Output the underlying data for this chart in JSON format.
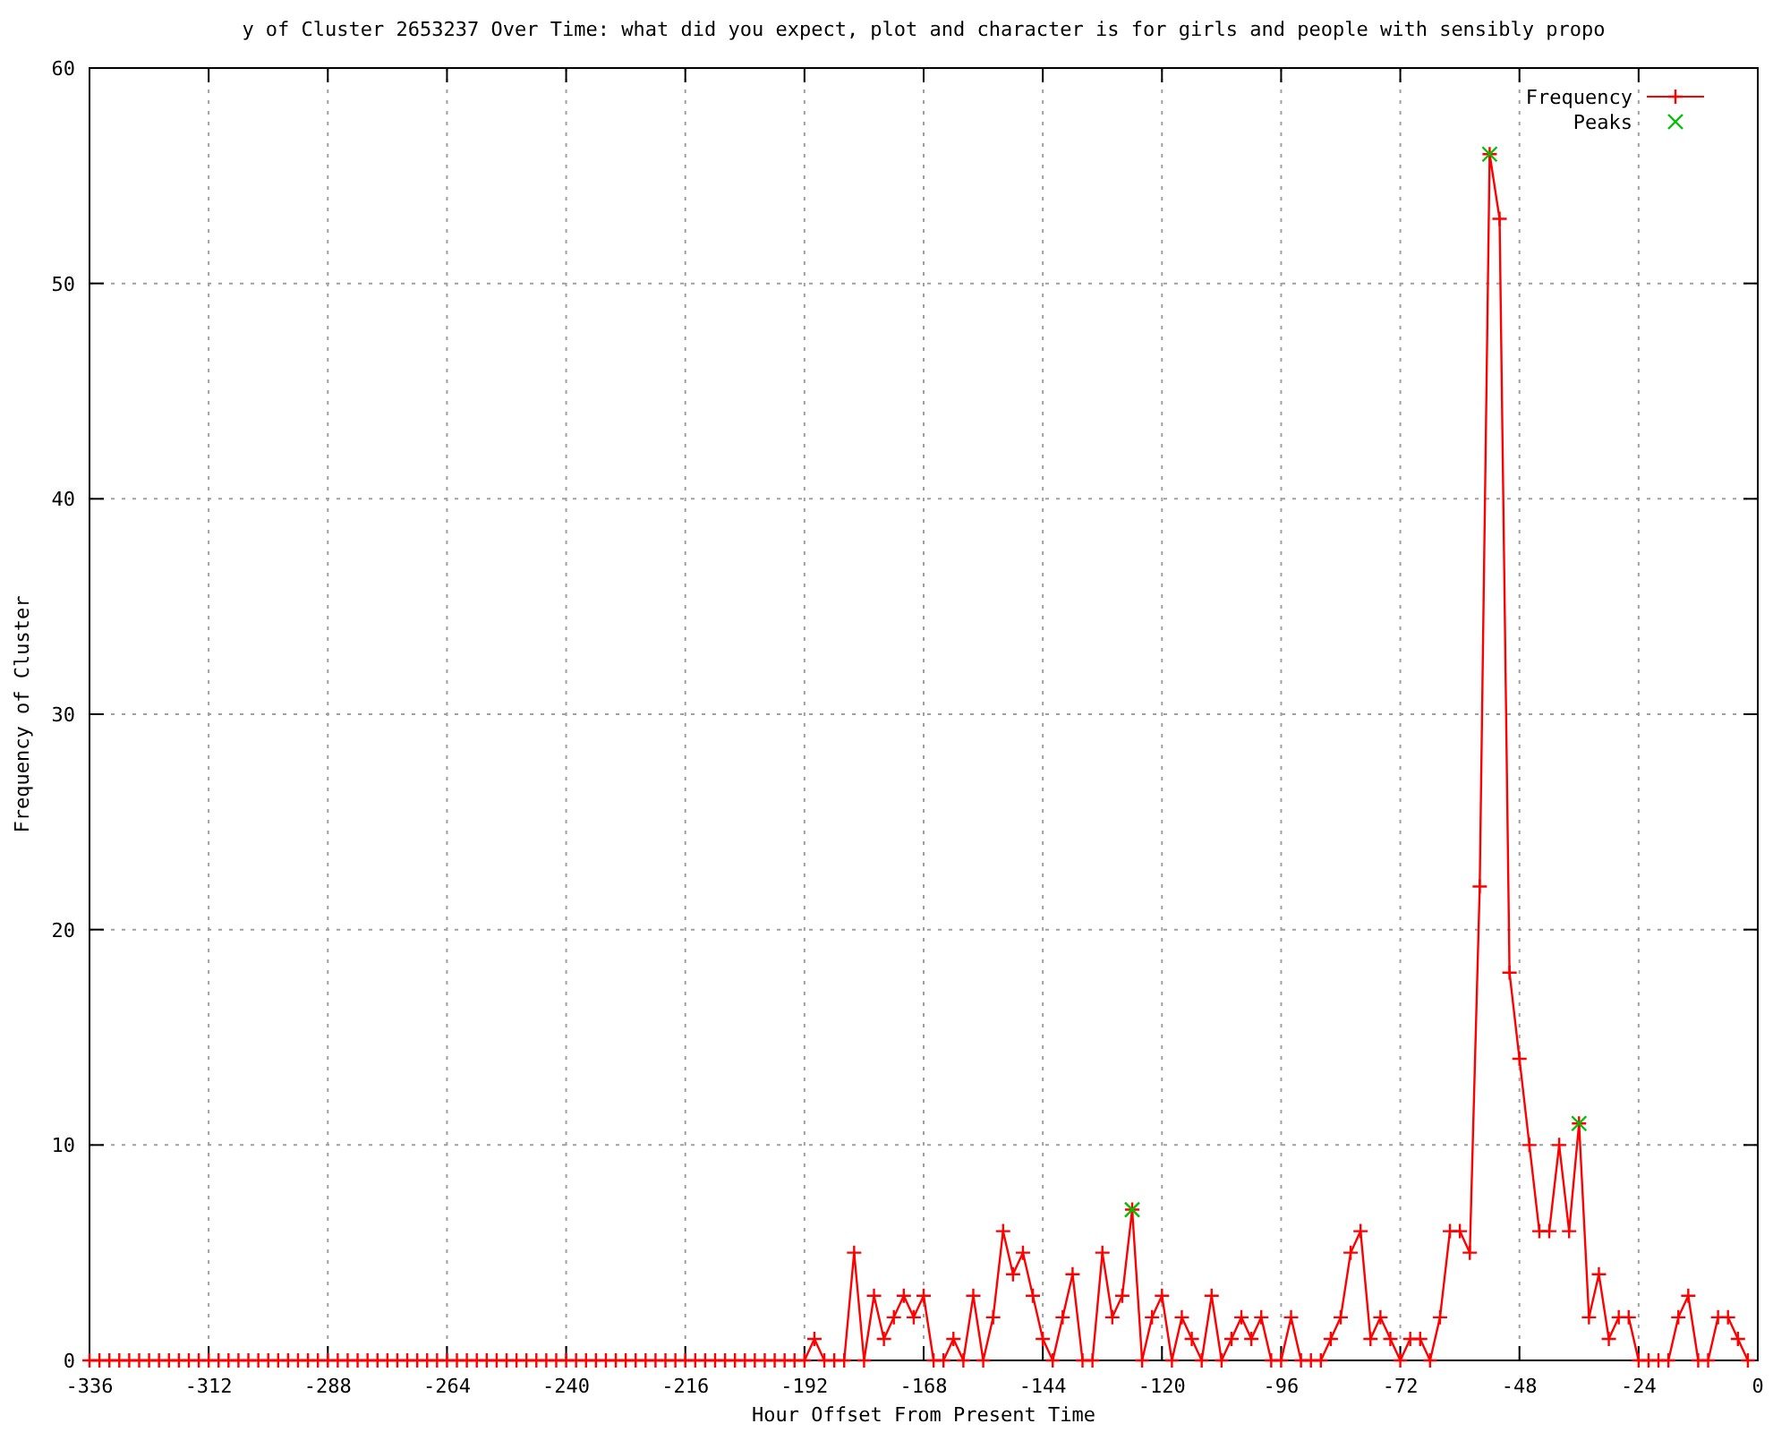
{
  "chart_data": {
    "type": "line",
    "title": "y of Cluster 2653237 Over Time: what did you expect, plot and character is for girls and people with sensibly propo",
    "xlabel": "Hour Offset From Present Time",
    "ylabel": "Frequency of Cluster",
    "xlim": [
      -336,
      0
    ],
    "xticks": [
      -336,
      -312,
      -288,
      -264,
      -240,
      -216,
      -192,
      -168,
      -144,
      -120,
      -96,
      -72,
      -48,
      -24,
      0
    ],
    "ylim": [
      0,
      60
    ],
    "yticks": [
      0,
      10,
      20,
      30,
      40,
      50,
      60
    ],
    "grid": true,
    "legend": "top right",
    "series": [
      {
        "name": "Frequency",
        "marker": "cross",
        "color": "#ff0000",
        "x": [
          -336,
          -334,
          -332,
          -330,
          -328,
          -326,
          -324,
          -322,
          -320,
          -318,
          -316,
          -314,
          -312,
          -310,
          -308,
          -306,
          -304,
          -302,
          -300,
          -298,
          -296,
          -294,
          -292,
          -290,
          -288,
          -286,
          -284,
          -282,
          -280,
          -278,
          -276,
          -274,
          -272,
          -270,
          -268,
          -266,
          -264,
          -262,
          -260,
          -258,
          -256,
          -254,
          -252,
          -250,
          -248,
          -246,
          -244,
          -242,
          -240,
          -238,
          -236,
          -234,
          -232,
          -230,
          -228,
          -226,
          -224,
          -222,
          -220,
          -218,
          -216,
          -214,
          -212,
          -210,
          -208,
          -206,
          -204,
          -202,
          -200,
          -198,
          -196,
          -194,
          -192,
          -190,
          -188,
          -186,
          -184,
          -182,
          -180,
          -178,
          -176,
          -174,
          -172,
          -170,
          -168,
          -166,
          -164,
          -162,
          -160,
          -158,
          -156,
          -154,
          -152,
          -150,
          -148,
          -146,
          -144,
          -142,
          -140,
          -138,
          -136,
          -134,
          -132,
          -130,
          -128,
          -126,
          -124,
          -122,
          -120,
          -118,
          -116,
          -114,
          -112,
          -110,
          -108,
          -106,
          -104,
          -102,
          -100,
          -98,
          -96,
          -94,
          -92,
          -90,
          -88,
          -86,
          -84,
          -82,
          -80,
          -78,
          -76,
          -74,
          -72,
          -70,
          -68,
          -66,
          -64,
          -62,
          -60,
          -58,
          -56,
          -54,
          -52,
          -50,
          -48,
          -46,
          -44,
          -42,
          -40,
          -38,
          -36,
          -34,
          -32,
          -30,
          -28,
          -26,
          -24,
          -22,
          -20,
          -18,
          -16,
          -14,
          -12,
          -10,
          -8,
          -6,
          -4,
          -2
        ],
        "values": [
          0,
          0,
          0,
          0,
          0,
          0,
          0,
          0,
          0,
          0,
          0,
          0,
          0,
          0,
          0,
          0,
          0,
          0,
          0,
          0,
          0,
          0,
          0,
          0,
          0,
          0,
          0,
          0,
          0,
          0,
          0,
          0,
          0,
          0,
          0,
          0,
          0,
          0,
          0,
          0,
          0,
          0,
          0,
          0,
          0,
          0,
          0,
          0,
          0,
          0,
          0,
          0,
          0,
          0,
          0,
          0,
          0,
          0,
          0,
          0,
          0,
          0,
          0,
          0,
          0,
          0,
          0,
          0,
          0,
          0,
          0,
          0,
          0,
          1,
          0,
          0,
          0,
          5,
          0,
          3,
          1,
          2,
          3,
          2,
          3,
          0,
          0,
          1,
          0,
          3,
          0,
          2,
          6,
          4,
          5,
          3,
          1,
          0,
          2,
          4,
          0,
          0,
          5,
          2,
          3,
          7,
          0,
          2,
          3,
          0,
          2,
          1,
          0,
          3,
          0,
          1,
          2,
          1,
          2,
          0,
          0,
          2,
          0,
          0,
          0,
          1,
          2,
          5,
          6,
          1,
          2,
          1,
          0,
          1,
          1,
          0,
          2,
          6,
          6,
          5,
          22,
          56,
          53,
          18,
          14,
          10,
          6,
          6,
          10,
          6,
          11,
          2,
          4,
          1,
          2,
          2,
          0,
          0,
          0,
          0,
          2,
          3,
          0,
          0,
          2,
          2,
          1,
          0
        ]
      },
      {
        "name": "Peaks",
        "type": "scatter",
        "marker": "cross",
        "color": "#00c000",
        "x": [
          -126,
          -54,
          -36
        ],
        "values": [
          7,
          56,
          11
        ]
      }
    ]
  }
}
